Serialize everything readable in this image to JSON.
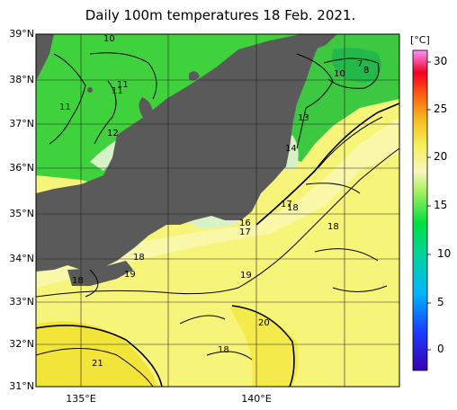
{
  "title": "Daily 100m temperatures 18 Feb. 2021.",
  "lat_labels": [
    "39°N",
    "38°N",
    "37°N",
    "36°N",
    "35°N",
    "34°N",
    "33°N",
    "32°N",
    "31°N"
  ],
  "lon_labels": [
    "135°E",
    "140°E"
  ],
  "colorbar": {
    "unit": "[°C]",
    "ticks": [
      "30",
      "25",
      "20",
      "15",
      "10",
      "5",
      "0"
    ]
  },
  "contour_labels": [
    "10",
    "7",
    "8",
    "10",
    "11",
    "11",
    "10",
    "11",
    "12",
    "13",
    "14",
    "17",
    "18",
    "16",
    "17",
    "18",
    "18",
    "19",
    "18",
    "19",
    "20",
    "18",
    "21"
  ],
  "colors": {
    "land": "#5a5a5a",
    "cold_green": "#3fd23c",
    "warm_yellow": "#f7f47a",
    "hot_yellow": "#f3e43a",
    "coast_white": "#d8f2c8"
  }
}
